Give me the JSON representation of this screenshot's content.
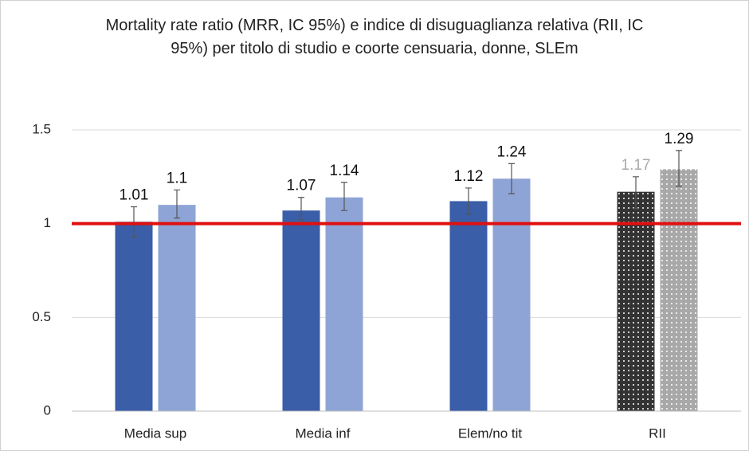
{
  "chart_data": {
    "type": "bar",
    "title": "Mortality rate ratio (MRR, IC 95%) e indice di disuguaglianza relativa (RII, IC 95%) per titolo di studio e coorte censuaria, donne, SLEm",
    "categories": [
      "Media sup",
      "Media inf",
      "Elem/no tit",
      "RII"
    ],
    "series": [
      {
        "colors": [
          "#3a5ea8",
          "#3a5ea8",
          "#3a5ea8",
          "#333333"
        ],
        "patterns": [
          null,
          null,
          null,
          "dots"
        ],
        "label_colors": [
          "#111111",
          "#111111",
          "#111111",
          "#aaaaaa"
        ],
        "values": [
          1.01,
          1.07,
          1.12,
          1.17
        ],
        "lower": [
          0.93,
          1.02,
          1.05,
          1.08
        ],
        "upper": [
          1.09,
          1.14,
          1.19,
          1.25
        ]
      },
      {
        "colors": [
          "#8ea4d6",
          "#8ea4d6",
          "#8ea4d6",
          "#a8a8a8"
        ],
        "patterns": [
          null,
          null,
          null,
          "dots"
        ],
        "label_colors": [
          "#111111",
          "#111111",
          "#111111",
          "#111111"
        ],
        "values": [
          1.1,
          1.14,
          1.24,
          1.29
        ],
        "lower": [
          1.03,
          1.07,
          1.16,
          1.2
        ],
        "upper": [
          1.18,
          1.22,
          1.32,
          1.39
        ]
      }
    ],
    "ylim": [
      0,
      1.5
    ],
    "yticks": [
      0,
      0.5,
      1,
      1.5
    ],
    "grid": true,
    "reference_line": {
      "value": 1,
      "color": "#e01010"
    }
  }
}
